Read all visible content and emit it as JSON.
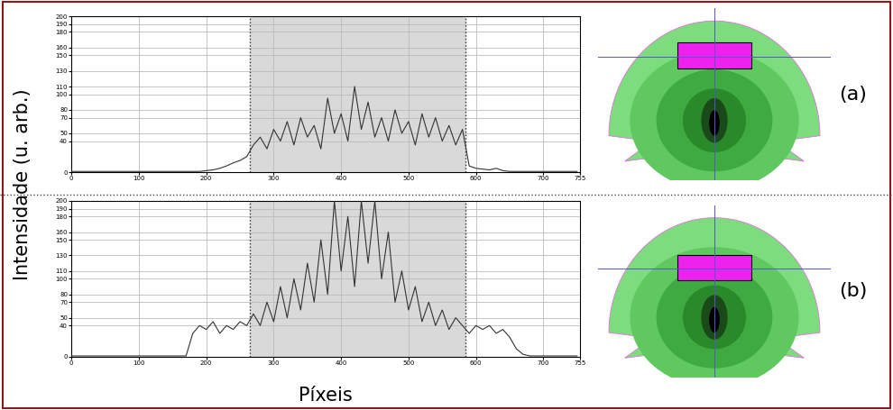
{
  "y_label": "Intensidade (u. arb.)",
  "x_label": "Píxeis",
  "chart_data": [
    {
      "type": "line",
      "label": "(a)",
      "color": "#333333",
      "grid": true,
      "x": [
        0,
        10,
        20,
        30,
        40,
        50,
        60,
        70,
        80,
        90,
        100,
        110,
        120,
        130,
        140,
        150,
        160,
        170,
        180,
        190,
        200,
        210,
        220,
        230,
        240,
        250,
        260,
        270,
        280,
        290,
        300,
        310,
        320,
        330,
        340,
        350,
        360,
        370,
        380,
        390,
        400,
        410,
        420,
        430,
        440,
        450,
        460,
        470,
        480,
        490,
        500,
        510,
        520,
        530,
        540,
        550,
        560,
        570,
        580,
        590,
        600,
        610,
        620,
        630,
        640,
        650,
        660,
        670,
        680,
        690,
        700,
        710,
        720,
        730,
        740,
        750
      ],
      "values": [
        1,
        1,
        1,
        1,
        1,
        1,
        1,
        1,
        1,
        1,
        1,
        1,
        1,
        1,
        1,
        1,
        1,
        1,
        1,
        1,
        2,
        3,
        5,
        8,
        12,
        15,
        20,
        35,
        45,
        30,
        55,
        40,
        65,
        35,
        70,
        45,
        60,
        30,
        95,
        50,
        75,
        40,
        110,
        55,
        90,
        45,
        70,
        40,
        80,
        50,
        65,
        35,
        75,
        45,
        70,
        40,
        60,
        35,
        55,
        8,
        5,
        4,
        3,
        5,
        2,
        1,
        1,
        1,
        1,
        1,
        1,
        1,
        1,
        1,
        1,
        1
      ],
      "shaded_span": [
        265,
        585
      ],
      "xlim": [
        0,
        755
      ],
      "xticks": [
        0,
        100,
        200,
        300,
        400,
        500,
        600,
        700,
        755
      ],
      "ylim": [
        0,
        200
      ],
      "yticks": [
        0,
        40,
        50,
        70,
        80,
        100,
        110,
        130,
        150,
        160,
        180,
        190,
        200
      ]
    },
    {
      "type": "line",
      "label": "(b)",
      "color": "#333333",
      "grid": true,
      "x": [
        0,
        10,
        20,
        30,
        40,
        50,
        60,
        70,
        80,
        90,
        100,
        110,
        120,
        130,
        140,
        150,
        160,
        170,
        180,
        190,
        200,
        210,
        220,
        230,
        240,
        250,
        260,
        270,
        280,
        290,
        300,
        310,
        320,
        330,
        340,
        350,
        360,
        370,
        380,
        390,
        400,
        410,
        420,
        430,
        440,
        450,
        460,
        470,
        480,
        490,
        500,
        510,
        520,
        530,
        540,
        550,
        560,
        570,
        580,
        590,
        600,
        610,
        620,
        630,
        640,
        650,
        660,
        670,
        680,
        690,
        700,
        710,
        720,
        730,
        740,
        750
      ],
      "values": [
        1,
        1,
        1,
        1,
        1,
        1,
        1,
        1,
        1,
        1,
        1,
        1,
        1,
        1,
        1,
        1,
        1,
        1,
        30,
        40,
        35,
        45,
        30,
        40,
        35,
        45,
        40,
        55,
        40,
        70,
        45,
        90,
        50,
        100,
        60,
        120,
        70,
        150,
        80,
        200,
        110,
        180,
        90,
        200,
        120,
        200,
        100,
        160,
        70,
        110,
        60,
        90,
        45,
        70,
        40,
        60,
        35,
        50,
        40,
        30,
        40,
        35,
        40,
        30,
        35,
        25,
        10,
        3,
        1,
        1,
        1,
        1,
        1,
        1,
        1,
        1
      ],
      "shaded_span": [
        265,
        585
      ],
      "xlim": [
        0,
        755
      ],
      "xticks": [
        0,
        100,
        200,
        300,
        400,
        500,
        600,
        700,
        755
      ],
      "ylim": [
        0,
        200
      ],
      "yticks": [
        0,
        40,
        50,
        70,
        80,
        100,
        110,
        130,
        150,
        160,
        180,
        190,
        200
      ]
    }
  ]
}
